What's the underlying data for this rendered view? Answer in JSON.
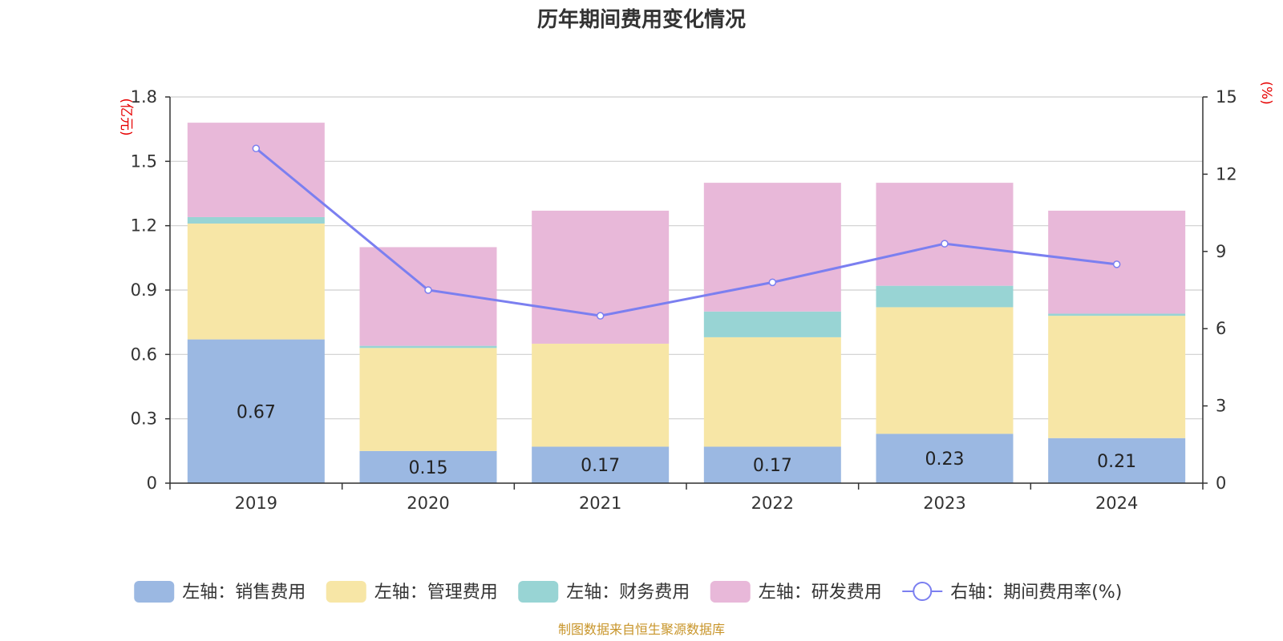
{
  "chart_data": {
    "type": "bar",
    "title": "历年期间费用变化情况",
    "categories": [
      "2019",
      "2020",
      "2021",
      "2022",
      "2023",
      "2024"
    ],
    "stacked": true,
    "left_axis": {
      "unit_label": "(亿元)",
      "ylim": [
        0,
        1.8
      ],
      "ticks": [
        "0",
        "0.3",
        "0.6",
        "0.9",
        "1.2",
        "1.5",
        "1.8"
      ]
    },
    "right_axis": {
      "unit_label": "(%)",
      "ylim": [
        0,
        15
      ],
      "ticks": [
        "0",
        "3",
        "6",
        "9",
        "12",
        "15"
      ]
    },
    "series": [
      {
        "name": "左轴：销售费用",
        "axis": "left",
        "type": "bar",
        "color": "#9bb8e2",
        "values": [
          0.67,
          0.15,
          0.17,
          0.17,
          0.23,
          0.21
        ],
        "labels": [
          "0.67",
          "0.15",
          "0.17",
          "0.17",
          "0.23",
          "0.21"
        ]
      },
      {
        "name": "左轴：管理费用",
        "axis": "left",
        "type": "bar",
        "color": "#f7e6a6",
        "values": [
          0.54,
          0.48,
          0.48,
          0.51,
          0.59,
          0.57
        ]
      },
      {
        "name": "左轴：财务费用",
        "axis": "left",
        "type": "bar",
        "color": "#98d4d4",
        "values": [
          0.03,
          0.01,
          0.0,
          0.12,
          0.1,
          0.01
        ]
      },
      {
        "name": "左轴：研发费用",
        "axis": "left",
        "type": "bar",
        "color": "#e8b8d9",
        "values": [
          0.44,
          0.46,
          0.62,
          0.6,
          0.48,
          0.48
        ]
      },
      {
        "name": "右轴：期间费用率(%)",
        "axis": "right",
        "type": "line",
        "color": "#7b7ff0",
        "values": [
          13.0,
          7.5,
          6.5,
          7.8,
          9.3,
          8.5
        ]
      }
    ],
    "grid": true,
    "legend_position": "bottom"
  },
  "source_note": "制图数据来自恒生聚源数据库"
}
